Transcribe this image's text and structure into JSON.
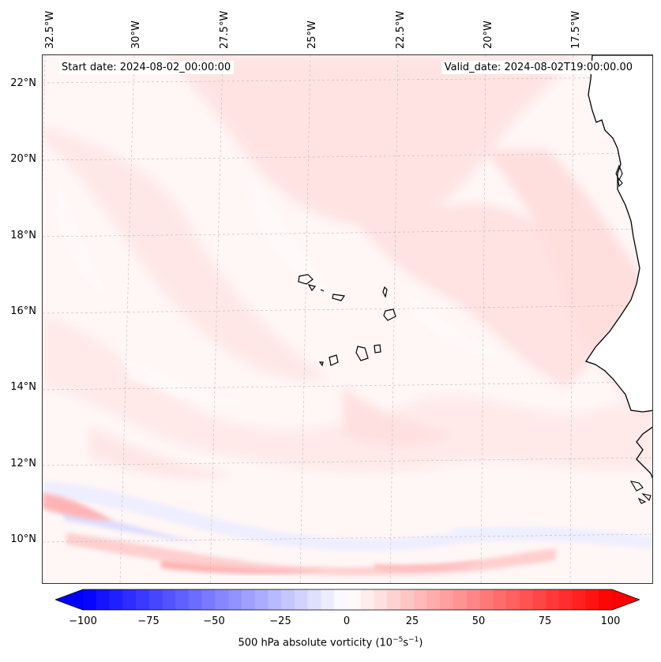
{
  "map": {
    "header_left": "Start date: 2024-08-02_00:00:00",
    "header_right": "Valid_date: 2024-08-02T19:00:00.00",
    "lon_labels": [
      "32.5°W",
      "30°W",
      "27.5°W",
      "25°W",
      "22.5°W",
      "20°W",
      "17.5°W"
    ],
    "lat_labels": [
      "22°N",
      "20°N",
      "18°N",
      "16°N",
      "14°N",
      "12°N",
      "10°N"
    ]
  },
  "colorbar": {
    "ticks": [
      "−100",
      "−75",
      "−50",
      "−25",
      "0",
      "25",
      "50",
      "75",
      "100"
    ],
    "label_main": "500 hPa absolute vorticity (10",
    "label_exp1": "−5",
    "label_mid": "s",
    "label_exp2": "−1",
    "label_end": ")",
    "min": -100,
    "max": 100,
    "levels": 40
  },
  "colors": {
    "negative": "#0000ff",
    "positive": "#ff0000",
    "neutral": "#ffffff"
  }
}
